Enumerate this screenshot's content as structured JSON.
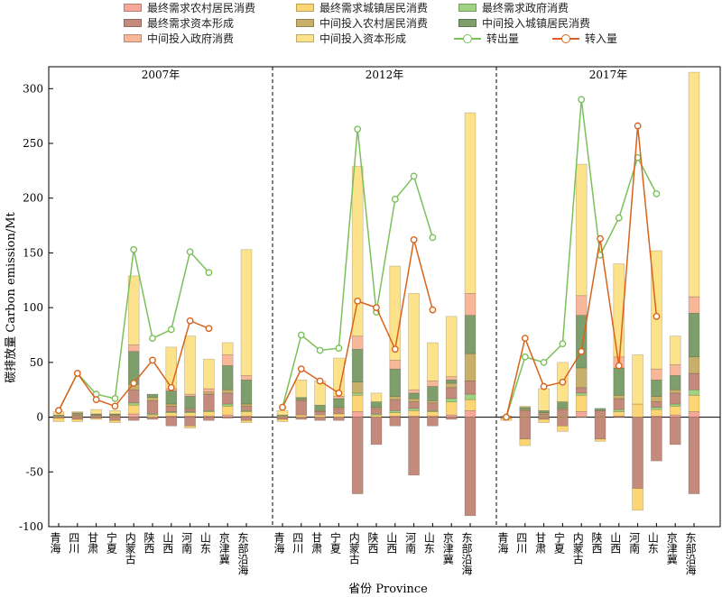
{
  "legend": [
    {
      "label": "最终需求农村居民消费",
      "color": "#f6a89a"
    },
    {
      "label": "最终需求城镇居民消费",
      "color": "#fcd675"
    },
    {
      "label": "最终需求政府消费",
      "color": "#9fd282"
    },
    {
      "label": "最终需求资本形成",
      "color": "#c48b7d"
    },
    {
      "label": "中间投入农村居民消费",
      "color": "#c9b06a"
    },
    {
      "label": "中间投入城镇居民消费",
      "color": "#7e9e6c"
    },
    {
      "label": "中间投入政府消费",
      "color": "#f9b79a"
    },
    {
      "label": "中间投入资本形成",
      "color": "#fde28c"
    },
    {
      "label": "转出量",
      "color": "#7cc05a"
    },
    {
      "label": "转入量",
      "color": "#d9631c"
    }
  ],
  "axes": {
    "ylabel": "碳排放量 Carbon emission/Mt",
    "xlabel": "省份 Province"
  },
  "chart_data": {
    "type": "bar",
    "stacked": true,
    "ylim": [
      -100,
      320
    ],
    "yticks": [
      -100,
      -50,
      0,
      50,
      100,
      150,
      200,
      250,
      300
    ],
    "panels": [
      "2007年",
      "2012年",
      "2017年"
    ],
    "categories": [
      "青海",
      "四川",
      "甘肃",
      "宁夏",
      "内蒙古",
      "陕西",
      "山西",
      "河南",
      "山东",
      "京津冀",
      "东部沿海"
    ],
    "series_order": [
      "最终需求农村居民消费",
      "最终需求城镇居民消费",
      "最终需求政府消费",
      "最终需求资本形成",
      "中间投入农村居民消费",
      "中间投入城镇居民消费",
      "中间投入政府消费",
      "中间投入资本形成"
    ],
    "stacks": [
      [
        [
          [
            0,
            1,
            0,
            0,
            0,
            1,
            0,
            3
          ],
          [
            -1,
            -3
          ]
        ],
        [
          [
            0,
            1,
            0,
            1,
            1,
            1,
            0,
            1
          ],
          [
            -2,
            -2
          ]
        ],
        [
          [
            0,
            1,
            0,
            1,
            0,
            1,
            0,
            4
          ],
          [
            -1,
            -1
          ]
        ],
        [
          [
            0,
            1,
            0,
            1,
            0,
            1,
            0,
            3
          ],
          [
            -3,
            -2
          ]
        ],
        [
          [
            3,
            8,
            2,
            12,
            5,
            30,
            6,
            63
          ],
          [
            -3,
            0
          ]
        ],
        [
          [
            0,
            2,
            1,
            12,
            3,
            3,
            0,
            0
          ],
          [
            -2,
            0
          ]
        ],
        [
          [
            1,
            3,
            1,
            5,
            2,
            12,
            2,
            38
          ],
          [
            -8,
            0
          ]
        ],
        [
          [
            1,
            3,
            1,
            2,
            1,
            11,
            2,
            53
          ],
          [
            -8,
            -2
          ]
        ],
        [
          [
            1,
            4,
            1,
            15,
            2,
            0,
            3,
            27
          ],
          [
            -3,
            0
          ]
        ],
        [
          [
            2,
            8,
            2,
            10,
            3,
            22,
            10,
            11
          ],
          [
            -1,
            0
          ]
        ],
        [
          [
            1,
            4,
            1,
            4,
            2,
            22,
            4,
            115
          ],
          [
            -3,
            -2
          ]
        ]
      ],
      [
        [
          [
            0,
            1,
            0,
            0,
            0,
            1,
            0,
            4
          ],
          [
            -2,
            -2
          ]
        ],
        [
          [
            0,
            2,
            0,
            13,
            1,
            2,
            0,
            16
          ],
          [
            -2,
            0
          ]
        ],
        [
          [
            0,
            2,
            0,
            3,
            1,
            5,
            0,
            22
          ],
          [
            -3,
            0
          ]
        ],
        [
          [
            0,
            3,
            0,
            5,
            1,
            8,
            2,
            35
          ],
          [
            -3,
            0
          ]
        ],
        [
          [
            5,
            15,
            2,
            0,
            10,
            30,
            12,
            155
          ],
          [
            -70,
            0
          ]
        ],
        [
          [
            0,
            2,
            1,
            5,
            1,
            5,
            0,
            8
          ],
          [
            -25,
            0
          ]
        ],
        [
          [
            1,
            3,
            2,
            10,
            3,
            25,
            8,
            86
          ],
          [
            -8,
            0
          ]
        ],
        [
          [
            1,
            5,
            2,
            6,
            3,
            5,
            3,
            88
          ],
          [
            -53,
            0
          ]
        ],
        [
          [
            1,
            4,
            1,
            7,
            2,
            13,
            5,
            35
          ],
          [
            -8,
            0
          ]
        ],
        [
          [
            2,
            12,
            3,
            10,
            4,
            3,
            3,
            55
          ],
          [
            -2,
            0
          ]
        ],
        [
          [
            6,
            10,
            5,
            12,
            25,
            35,
            20,
            165
          ],
          [
            -90,
            0
          ]
        ]
      ],
      [
        [
          [
            0,
            0,
            0,
            0,
            0,
            1,
            0,
            0
          ],
          [
            -1,
            -2
          ]
        ],
        [
          [
            0,
            1,
            0,
            5,
            1,
            2,
            0,
            1
          ],
          [
            -20,
            -6
          ]
        ],
        [
          [
            0,
            1,
            0,
            2,
            1,
            2,
            0,
            20
          ],
          [
            -2,
            -3
          ]
        ],
        [
          [
            0,
            1,
            0,
            6,
            1,
            6,
            0,
            36
          ],
          [
            -8,
            -5
          ]
        ],
        [
          [
            5,
            15,
            2,
            5,
            18,
            48,
            18,
            120
          ],
          [
            0,
            0
          ]
        ],
        [
          [
            0,
            1,
            0,
            5,
            0,
            2,
            0,
            0
          ],
          [
            -20,
            -2
          ]
        ],
        [
          [
            1,
            4,
            2,
            10,
            3,
            25,
            10,
            85
          ],
          [
            0,
            0
          ]
        ],
        [
          [
            0,
            12,
            0,
            0,
            0,
            0,
            0,
            45
          ],
          [
            -65,
            -20
          ]
        ],
        [
          [
            1,
            6,
            2,
            5,
            5,
            15,
            10,
            108
          ],
          [
            -40,
            0
          ]
        ],
        [
          [
            2,
            8,
            2,
            10,
            3,
            13,
            10,
            26
          ],
          [
            -25,
            0
          ]
        ],
        [
          [
            5,
            15,
            5,
            15,
            15,
            40,
            15,
            205
          ],
          [
            -70,
            0
          ]
        ]
      ]
    ],
    "transfer_out": [
      [
        6,
        40,
        21,
        17,
        153,
        72,
        80,
        151,
        132
      ],
      [
        9,
        75,
        61,
        63,
        263,
        96,
        199,
        220,
        164
      ],
      [
        0,
        55,
        50,
        67,
        290,
        148,
        182,
        237,
        204
      ]
    ],
    "transfer_in": [
      [
        6,
        40,
        16,
        10,
        31,
        52,
        27,
        88,
        81
      ],
      [
        9,
        44,
        33,
        22,
        106,
        100,
        62,
        162,
        98
      ],
      [
        0,
        72,
        28,
        32,
        60,
        163,
        47,
        266,
        92
      ]
    ]
  }
}
